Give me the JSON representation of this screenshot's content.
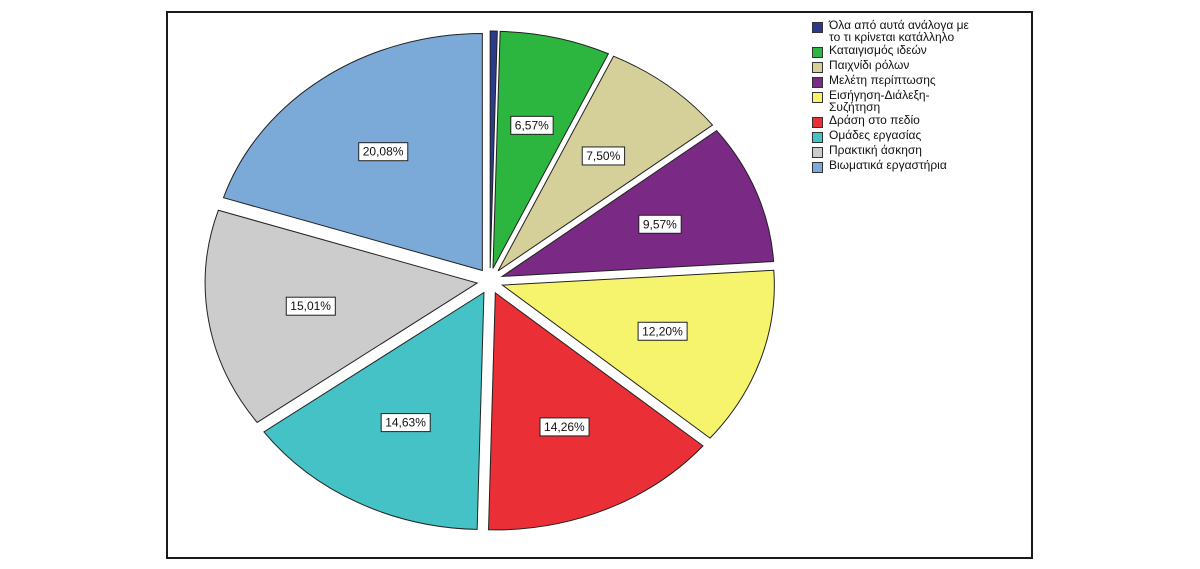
{
  "chart_data": {
    "type": "pie",
    "title": "",
    "legend_placement": "top-right",
    "slices": [
      {
        "label": "Όλα από αυτά ανάλογα με το τι κρίνεται κατάλληλο",
        "value": 0.42,
        "data_label": "",
        "color": "#2d3a8c"
      },
      {
        "label": "Καταιγισμός ιδεών",
        "value": 6.57,
        "data_label": "6,57%",
        "color": "#2cb53f"
      },
      {
        "label": "Παιχνίδι ρόλων",
        "value": 7.5,
        "data_label": "7,50%",
        "color": "#d5cf9a"
      },
      {
        "label": "Μελέτη περίπτωσης",
        "value": 9.57,
        "data_label": "9,57%",
        "color": "#7a2a84"
      },
      {
        "label": "Εισήγηση-Διάλεξη-Συζήτηση",
        "value": 12.2,
        "data_label": "12,20%",
        "color": "#f6f46c"
      },
      {
        "label": "Δράση στο πεδίο",
        "value": 14.26,
        "data_label": "14,26%",
        "color": "#ea2f36"
      },
      {
        "label": "Ομάδες εργασίας",
        "value": 14.63,
        "data_label": "14,63%",
        "color": "#44c2c6"
      },
      {
        "label": "Πρακτική άσκηση",
        "value": 15.01,
        "data_label": "15,01%",
        "color": "#cccccc"
      },
      {
        "label": "Βιωματικά εργαστήρια",
        "value": 20.08,
        "data_label": "20,08%",
        "color": "#7ba9d8"
      }
    ]
  },
  "legend": {
    "items": [
      {
        "text": "Όλα από αυτά ανάλογα με",
        "text2": "το τι κρίνεται κατάλληλο"
      },
      {
        "text": "Καταιγισμός ιδεών",
        "text2": ""
      },
      {
        "text": "Παιχνίδι ρόλων",
        "text2": ""
      },
      {
        "text": "Μελέτη περίπτωσης",
        "text2": ""
      },
      {
        "text": "Εισήγηση-Διάλεξη-",
        "text2": "Συζήτηση"
      },
      {
        "text": "Δράση στο πεδίο",
        "text2": ""
      },
      {
        "text": "Ομάδες εργασίας",
        "text2": ""
      },
      {
        "text": "Πρακτική άσκηση",
        "text2": ""
      },
      {
        "text": "Βιωματικά εργαστήρια",
        "text2": ""
      }
    ]
  }
}
